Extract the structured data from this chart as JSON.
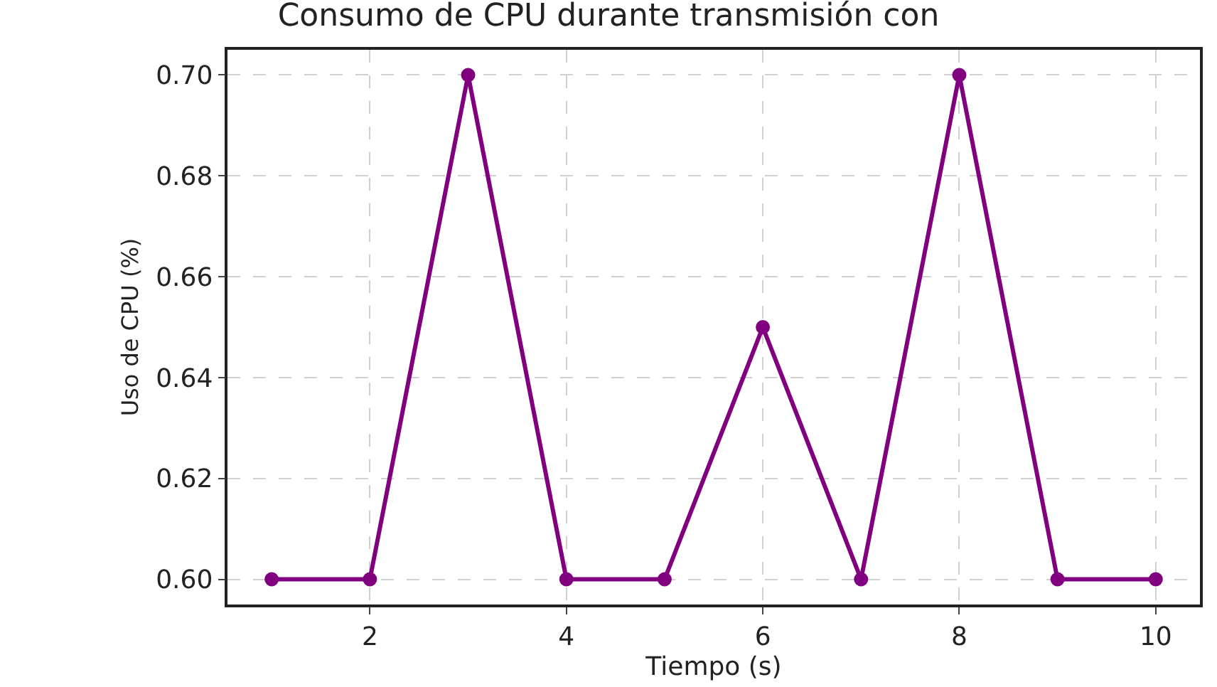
{
  "chart_data": {
    "type": "line",
    "title": "Consumo de CPU durante transmisión con",
    "xlabel": "Tiempo (s)",
    "ylabel": "Uso de CPU (%)",
    "x": [
      1,
      2,
      3,
      4,
      5,
      6,
      7,
      8,
      9,
      10
    ],
    "series": [
      {
        "color": "#800080",
        "values": [
          0.6,
          0.6,
          0.7,
          0.6,
          0.6,
          0.65,
          0.6,
          0.7,
          0.6,
          0.6
        ]
      }
    ],
    "xlim": [
      0.55,
      10.45
    ],
    "xticks": [
      2,
      4,
      6,
      8,
      10
    ],
    "ylim": [
      0.595,
      0.705
    ],
    "yticks": [
      {
        "value": 0.6,
        "label": "0.60"
      },
      {
        "value": 0.62,
        "label": "0.62"
      },
      {
        "value": 0.64,
        "label": "0.64"
      },
      {
        "value": 0.66,
        "label": "0.66"
      },
      {
        "value": 0.68,
        "label": "0.68"
      },
      {
        "value": 0.7,
        "label": "0.70"
      }
    ],
    "grid": true,
    "marker": "circle",
    "line_style": "solid"
  }
}
